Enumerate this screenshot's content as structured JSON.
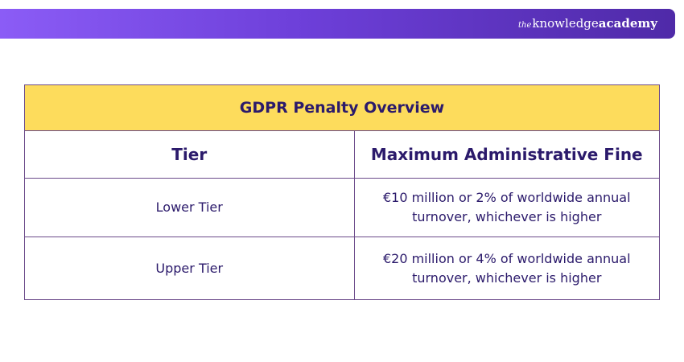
{
  "brand": {
    "prefix": "the",
    "name_light": "knowledge",
    "name_bold": "academy"
  },
  "table": {
    "title": "GDPR Penalty Overview",
    "headers": [
      "Tier",
      "Maximum Administrative Fine"
    ],
    "rows": [
      {
        "tier": "Lower Tier",
        "fine": "€10 million or 2% of worldwide annual turnover, whichever is higher"
      },
      {
        "tier": "Upper Tier",
        "fine": "€20 million or 4% of worldwide annual turnover, whichever is higher"
      }
    ]
  },
  "colors": {
    "banner_start": "#8b5cf6",
    "banner_end": "#4f2aa8",
    "title_bg": "#fddc5c",
    "text": "#2b1a6b",
    "border": "#6b4a8a"
  }
}
